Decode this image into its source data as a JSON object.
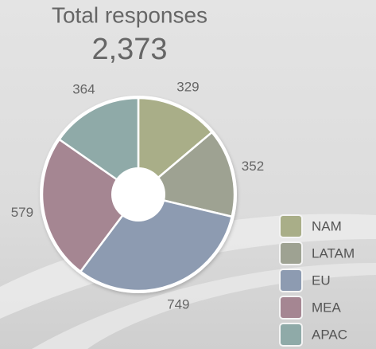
{
  "chart_data": {
    "type": "donut",
    "title": "Total responses",
    "subtitle": "2,373",
    "categories": [
      "NAM",
      "LATAM",
      "EU",
      "MEA",
      "APAC"
    ],
    "values": [
      329,
      352,
      749,
      579,
      364
    ],
    "colors": [
      "#a9ae88",
      "#9ea292",
      "#8d9bb1",
      "#a58692",
      "#8faaa8"
    ],
    "legend": "right"
  }
}
